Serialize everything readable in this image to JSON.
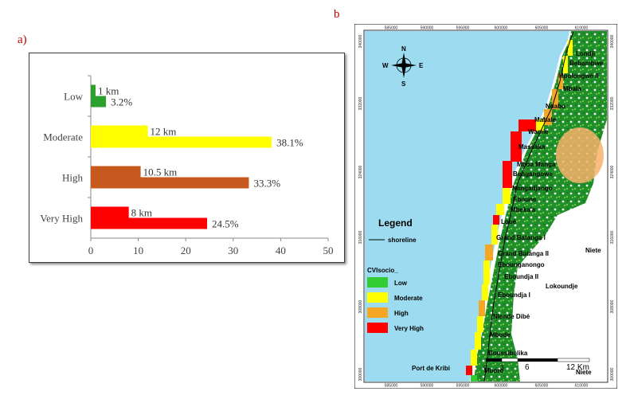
{
  "panel_a_label": "a)",
  "panel_b_label": "b",
  "chart_data": {
    "type": "bar",
    "orientation": "horizontal",
    "categories": [
      "Low",
      "Moderate",
      "High",
      "Very High"
    ],
    "series": [
      {
        "values": [
          1,
          12,
          10.5,
          8
        ],
        "labels": [
          "1 km",
          "12 km",
          "10.5 km",
          "8 km"
        ]
      },
      {
        "values": [
          3.2,
          38.1,
          33.3,
          24.5
        ],
        "labels": [
          "3.2%",
          "38.1%",
          "33.3%",
          "24.5%"
        ]
      }
    ],
    "colors": [
      "#2ca02c",
      "#ffff00",
      "#c65a1e",
      "#ff0000"
    ],
    "xlim": [
      0,
      50
    ],
    "xticks": [
      "0",
      "10",
      "20",
      "30",
      "40",
      "50"
    ],
    "grid": false
  },
  "map": {
    "legend_title": "Legend",
    "shoreline_label": "shoreline",
    "class_title": "CVIsocio_",
    "classes": [
      {
        "label": "Low",
        "color": "#33cc33"
      },
      {
        "label": "Moderate",
        "color": "#ffff00"
      },
      {
        "label": "High",
        "color": "#f5a623"
      },
      {
        "label": "Very High",
        "color": "#ff0000"
      }
    ],
    "compass": {
      "n": "N",
      "s": "S",
      "e": "E",
      "w": "W"
    },
    "places": [
      "Londji",
      "Bebambwe",
      "Mpolongwe II",
      "Mbala",
      "Ndabo",
      "Mahale",
      "Wamie",
      "Massaka",
      "Mboa Manga",
      "Bengangowe",
      "Nangadjango",
      "Eboune",
      "Mbeka'a",
      "Lobé",
      "Grand Batanga I",
      "Grand Batanga II",
      "Ebounganongo",
      "Eboundja II",
      "Lokoundje",
      "Eboundja I",
      "Nlende Dibé",
      "Mbode",
      "Boussibelika",
      "Port de Kribi",
      "Mboro",
      "Niete",
      "Niete"
    ],
    "scale": [
      "0",
      "3",
      "6",
      "12 Km"
    ],
    "x_coords": [
      "585000",
      "590000",
      "595000",
      "600000",
      "605000",
      "610000"
    ],
    "y_coords": [
      "340000",
      "332000",
      "324000",
      "316000",
      "308000",
      "300000"
    ]
  }
}
